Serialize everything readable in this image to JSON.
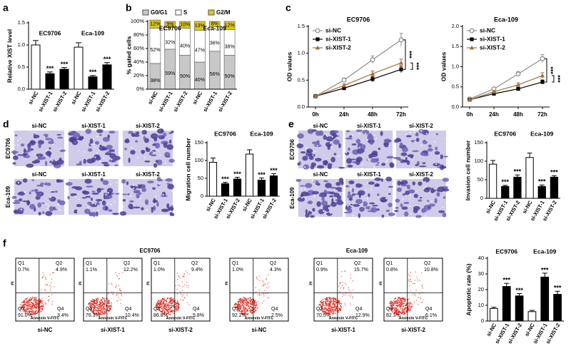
{
  "panels": [
    "a",
    "b",
    "c",
    "d",
    "e",
    "f"
  ],
  "chart_data": [
    {
      "type": "bar",
      "y_label": "Relative XIST level",
      "groups": [
        "EC9706",
        "Eca-109"
      ],
      "categories": [
        "si-NC",
        "si-XIST-1",
        "si-XIST-2",
        "si-NC",
        "si-XIST-1",
        "si-XIST-2"
      ],
      "values": [
        1.0,
        0.35,
        0.45,
        0.95,
        0.28,
        0.55
      ],
      "errors": [
        0.1,
        0.04,
        0.04,
        0.1,
        0.03,
        0.05
      ],
      "significance": [
        null,
        "***",
        "***",
        null,
        "***",
        "***"
      ],
      "colors": [
        "#ffffff",
        "#000000",
        "#000000",
        "#ffffff",
        "#000000",
        "#000000"
      ],
      "ylim": [
        0,
        1.5
      ],
      "yticks": [
        {
          "value": 0,
          "label": "0.0"
        },
        0.5,
        {
          "value": 1,
          "label": "1.0"
        },
        1.5
      ]
    },
    {
      "type": "stacked_bar",
      "y_label": "% gated cells",
      "groups": [
        "EC9706",
        "Eca-109"
      ],
      "categories": [
        "si-NC",
        "si-XIST-1",
        "si-XIST-2",
        "si-NC",
        "si-XIST-1",
        "si-XIST-2"
      ],
      "series": [
        {
          "name": "G0/G1",
          "color": "#c8c8c8",
          "values": [
            38,
            59,
            50,
            40,
            56,
            50
          ],
          "value_labels": [
            "38%",
            "59%",
            "50%",
            "40%",
            "56%",
            "50%"
          ]
        },
        {
          "name": "S",
          "color": "#ffffff",
          "values": [
            52,
            32,
            40,
            47,
            36,
            38
          ],
          "value_labels": [
            "52%",
            "32%",
            "40%",
            "47%",
            "36%",
            "38%"
          ]
        },
        {
          "name": "G2/M",
          "color": "#d9c81c",
          "values": [
            12,
            9,
            10,
            13,
            8,
            12
          ],
          "value_labels": [
            "12%",
            "9%",
            "10%",
            "13%",
            "8%",
            "12%"
          ]
        }
      ],
      "ylim": [
        0,
        100
      ],
      "yticks": [
        {
          "value": 0,
          "label": "0%"
        },
        {
          "value": 20,
          "label": "20%"
        },
        {
          "value": 40,
          "label": "40%"
        },
        {
          "value": 60,
          "label": "60%"
        },
        {
          "value": 80,
          "label": "80%"
        },
        {
          "value": 100,
          "label": "100%"
        }
      ]
    },
    {
      "type": "line",
      "title": "EC9706",
      "y_label": "OD values",
      "categories": [
        "0h",
        "24h",
        "48h",
        "72h"
      ],
      "series": [
        {
          "name": "si-NC",
          "color": "#8c8c8c",
          "marker": "circle",
          "values": [
            0.2,
            0.5,
            0.88,
            1.25
          ],
          "errors": [
            0.02,
            0.04,
            0.07,
            0.12
          ]
        },
        {
          "name": "si-XIST-1",
          "color": "#000000",
          "marker": "square",
          "values": [
            0.2,
            0.35,
            0.52,
            0.7
          ],
          "errors": [
            0.02,
            0.03,
            0.05,
            0.06
          ]
        },
        {
          "name": "si-XIST-2",
          "color": "#a3703a",
          "marker": "triangle",
          "values": [
            0.2,
            0.4,
            0.62,
            0.82
          ],
          "errors": [
            0.02,
            0.03,
            0.05,
            0.07
          ]
        }
      ],
      "annotations": [
        "***",
        "***"
      ],
      "ylim": [
        0,
        1.5
      ],
      "yticks": [
        {
          "value": 0,
          "label": "0.0"
        },
        0.5,
        {
          "value": 1,
          "label": "1.0"
        },
        1.5
      ]
    },
    {
      "type": "line",
      "title": "Eca-109",
      "y_label": "OD values",
      "categories": [
        "0h",
        "24h",
        "48h",
        "72h"
      ],
      "series": [
        {
          "name": "si-NC",
          "color": "#8c8c8c",
          "marker": "circle",
          "values": [
            0.2,
            0.45,
            0.82,
            1.2
          ],
          "errors": [
            0.02,
            0.04,
            0.06,
            0.1
          ]
        },
        {
          "name": "si-XIST-1",
          "color": "#000000",
          "marker": "square",
          "values": [
            0.18,
            0.33,
            0.45,
            0.62
          ],
          "errors": [
            0.02,
            0.03,
            0.04,
            0.05
          ]
        },
        {
          "name": "si-XIST-2",
          "color": "#a3703a",
          "marker": "triangle",
          "values": [
            0.18,
            0.38,
            0.55,
            0.78
          ],
          "errors": [
            0.02,
            0.03,
            0.05,
            0.07
          ]
        }
      ],
      "annotations": [
        "***",
        "***"
      ],
      "ylim": [
        0,
        2
      ],
      "yticks": [
        {
          "value": 0,
          "label": "0.0"
        },
        0.5,
        {
          "value": 1,
          "label": "1.0"
        },
        1.5,
        {
          "value": 2,
          "label": "2.0"
        }
      ]
    },
    {
      "type": "bar",
      "y_label": "Migration cell number",
      "groups": [
        "EC9706",
        "Eca-109"
      ],
      "categories": [
        "si-NC",
        "si-XIST-1",
        "si-XIST-2",
        "si-NC",
        "si-XIST-1",
        "si-XIST-2"
      ],
      "values": [
        95,
        35,
        48,
        118,
        45,
        57
      ],
      "errors": [
        12,
        4,
        5,
        12,
        6,
        6
      ],
      "significance": [
        null,
        "***",
        "***",
        null,
        "***",
        "***"
      ],
      "colors": [
        "#ffffff",
        "#000000",
        "#000000",
        "#ffffff",
        "#000000",
        "#000000"
      ],
      "ylim": [
        0,
        150
      ],
      "yticks": [
        0,
        50,
        100,
        150
      ]
    },
    {
      "type": "bar",
      "y_label": "Invasion cell number",
      "groups": [
        "EC9706",
        "Eca-109"
      ],
      "categories": [
        "si-NC",
        "si-XIST-1",
        "si-XIST-2",
        "si-NC",
        "si-XIST-1",
        "si-XIST-2"
      ],
      "values": [
        92,
        32,
        57,
        110,
        32,
        57
      ],
      "errors": [
        10,
        3,
        6,
        12,
        4,
        4
      ],
      "significance": [
        null,
        "***",
        "***",
        null,
        "***",
        "***"
      ],
      "colors": [
        "#ffffff",
        "#000000",
        "#000000",
        "#ffffff",
        "#000000",
        "#000000"
      ],
      "ylim": [
        0,
        150
      ],
      "yticks": [
        0,
        50,
        100,
        150
      ]
    },
    {
      "type": "bar",
      "y_label": "Apoptotic rate (%)",
      "groups": [
        "EC9706",
        "Eca-109"
      ],
      "categories": [
        "si-NC",
        "si-XIST-1",
        "si-XIST-2",
        "si-NC",
        "si-XIST-1",
        "si-XIST-2"
      ],
      "values": [
        8,
        22,
        16,
        6,
        28,
        17
      ],
      "errors": [
        0.8,
        2,
        1.5,
        0.8,
        2.5,
        2
      ],
      "significance": [
        null,
        "***",
        "***",
        null,
        "***",
        "***"
      ],
      "colors": [
        "#ffffff",
        "#000000",
        "#000000",
        "#ffffff",
        "#000000",
        "#000000"
      ],
      "ylim": [
        0,
        40
      ],
      "yticks": [
        0,
        10,
        20,
        30,
        40
      ]
    }
  ],
  "migration_images": {
    "row_labels": [
      "EC9706",
      "Eca-109"
    ],
    "column_labels": [
      [
        "si-NC",
        "si-XIST-1",
        "si-XIST-2"
      ],
      [
        "si-NC",
        "si-XIST-1",
        "si-XIST-2"
      ]
    ]
  },
  "invasion_images": {
    "row_labels": [
      "EC9706",
      "Eca-109"
    ],
    "column_labels": [
      [
        "si-NC",
        "si-XIST-1",
        "si-XIST-2"
      ],
      [
        "si-NC",
        "si-XIST-1",
        "si-XIST-2"
      ]
    ]
  },
  "flow_cytometry": {
    "groups": [
      "EC9706",
      "Eca-109"
    ],
    "x_label": "Annexin V-FITC",
    "y_label": "PI",
    "plots": [
      {
        "sample": "si-NC",
        "quadrants": [
          {
            "name": "Q1",
            "value": "0.7%"
          },
          {
            "name": "Q2",
            "value": "4.9%"
          },
          {
            "name": "Q3",
            "value": "91.0%"
          },
          {
            "name": "Q4",
            "value": "3.4%"
          }
        ]
      },
      {
        "sample": "si-XIST-1",
        "quadrants": [
          {
            "name": "Q1",
            "value": "1.1%"
          },
          {
            "name": "Q2",
            "value": "12.2%"
          },
          {
            "name": "Q3",
            "value": "76.3%"
          },
          {
            "name": "Q4",
            "value": "10.4%"
          }
        ]
      },
      {
        "sample": "si-XIST-2",
        "quadrants": [
          {
            "name": "Q1",
            "value": "1.0%"
          },
          {
            "name": "Q2",
            "value": "9.4%"
          },
          {
            "name": "Q3",
            "value": "86.8%"
          },
          {
            "name": "Q4",
            "value": "5.8%"
          }
        ]
      },
      {
        "sample": "si-NC",
        "quadrants": [
          {
            "name": "Q1",
            "value": "1.0%"
          },
          {
            "name": "Q2",
            "value": "4.3%"
          },
          {
            "name": "Q3",
            "value": "92.2%"
          },
          {
            "name": "Q4",
            "value": "2.5%"
          }
        ]
      },
      {
        "sample": "si-XIST-1",
        "quadrants": [
          {
            "name": "Q1",
            "value": "0.9%"
          },
          {
            "name": "Q2",
            "value": "15.7%"
          },
          {
            "name": "Q3",
            "value": "70.5%"
          },
          {
            "name": "Q4",
            "value": "12.9%"
          }
        ]
      },
      {
        "sample": "si-XIST-2",
        "quadrants": [
          {
            "name": "Q1",
            "value": "0.8%"
          },
          {
            "name": "Q2",
            "value": "10.8%"
          },
          {
            "name": "Q3",
            "value": "82.3%"
          },
          {
            "name": "Q4",
            "value": "6.1%"
          }
        ]
      }
    ]
  }
}
